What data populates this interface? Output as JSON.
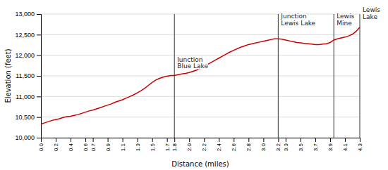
{
  "chart_data": {
    "type": "line",
    "xlabel": "Distance (miles)",
    "ylabel": "Elevation (feet)",
    "color": "#cc0000",
    "grid": true,
    "xlim": [
      0.0,
      4.3
    ],
    "ylim": [
      10000,
      13000
    ],
    "xticks": [
      {
        "value": 0.0,
        "label": "0.0"
      },
      0.2,
      0.4,
      0.6,
      0.7,
      0.9,
      1.1,
      1.3,
      1.5,
      1.7,
      1.8,
      {
        "value": 2.0,
        "label": "2.0"
      },
      2.2,
      2.4,
      2.6,
      2.8,
      {
        "value": 3.0,
        "label": "3.0"
      },
      3.2,
      3.3,
      3.5,
      3.7,
      3.9,
      4.1,
      4.3
    ],
    "yticks": [
      {
        "value": 10000,
        "label": "10,000"
      },
      {
        "value": 10500,
        "label": "10,500"
      },
      {
        "value": 11000,
        "label": "11,000"
      },
      {
        "value": 11500,
        "label": "11,500"
      },
      {
        "value": 12000,
        "label": "12,000"
      },
      {
        "value": 12500,
        "label": "12,500"
      },
      {
        "value": 13000,
        "label": "13,000"
      }
    ],
    "annotations": [
      {
        "x": 1.8,
        "y": 11650,
        "label": "Junction\nBlue Lake"
      },
      {
        "x": 3.2,
        "y": 12700,
        "label": "Junction\nLewis Lake"
      },
      {
        "x": 3.95,
        "y": 12700,
        "label": "Lewis\nMine"
      },
      {
        "x": 4.3,
        "y": 12850,
        "label": "Lewis\nLake"
      }
    ],
    "x": [
      0.0,
      0.05,
      0.1,
      0.15,
      0.2,
      0.25,
      0.3,
      0.35,
      0.4,
      0.45,
      0.5,
      0.55,
      0.6,
      0.65,
      0.7,
      0.75,
      0.8,
      0.85,
      0.9,
      0.95,
      1.0,
      1.05,
      1.1,
      1.15,
      1.2,
      1.25,
      1.3,
      1.35,
      1.4,
      1.45,
      1.5,
      1.55,
      1.6,
      1.65,
      1.7,
      1.75,
      1.8,
      1.85,
      1.9,
      1.95,
      2.0,
      2.05,
      2.1,
      2.15,
      2.2,
      2.25,
      2.3,
      2.35,
      2.4,
      2.45,
      2.5,
      2.55,
      2.6,
      2.65,
      2.7,
      2.75,
      2.8,
      2.85,
      2.9,
      2.95,
      3.0,
      3.05,
      3.1,
      3.15,
      3.2,
      3.25,
      3.3,
      3.35,
      3.4,
      3.45,
      3.5,
      3.55,
      3.6,
      3.65,
      3.7,
      3.75,
      3.8,
      3.85,
      3.9,
      3.95,
      4.0,
      4.05,
      4.1,
      4.15,
      4.2,
      4.25,
      4.3
    ],
    "values": [
      10330,
      10360,
      10390,
      10420,
      10440,
      10460,
      10490,
      10510,
      10520,
      10540,
      10560,
      10590,
      10620,
      10650,
      10670,
      10700,
      10730,
      10760,
      10790,
      10820,
      10860,
      10890,
      10920,
      10960,
      11000,
      11040,
      11090,
      11140,
      11200,
      11270,
      11340,
      11400,
      11440,
      11470,
      11490,
      11510,
      11510,
      11530,
      11545,
      11560,
      11580,
      11610,
      11640,
      11680,
      11730,
      11780,
      11830,
      11880,
      11930,
      11980,
      12030,
      12080,
      12120,
      12160,
      12200,
      12230,
      12260,
      12280,
      12300,
      12320,
      12340,
      12360,
      12380,
      12400,
      12400,
      12390,
      12370,
      12350,
      12330,
      12310,
      12300,
      12290,
      12280,
      12270,
      12260,
      12260,
      12270,
      12280,
      12310,
      12370,
      12400,
      12420,
      12440,
      12470,
      12510,
      12580,
      12680
    ]
  }
}
